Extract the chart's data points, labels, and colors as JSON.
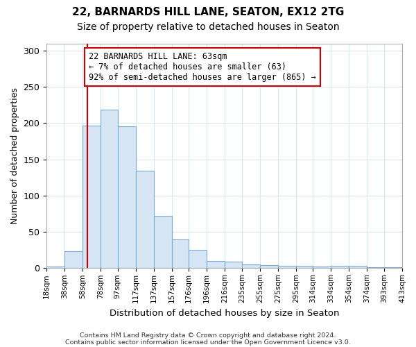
{
  "title1": "22, BARNARDS HILL LANE, SEATON, EX12 2TG",
  "title2": "Size of property relative to detached houses in Seaton",
  "xlabel": "Distribution of detached houses by size in Seaton",
  "ylabel": "Number of detached properties",
  "bin_edges": [
    18,
    38,
    58,
    78,
    97,
    117,
    137,
    157,
    176,
    196,
    216,
    235,
    255,
    275,
    295,
    314,
    334,
    354,
    374,
    393,
    413
  ],
  "bin_labels": [
    "18sqm",
    "38sqm",
    "58sqm",
    "78sqm",
    "97sqm",
    "117sqm",
    "137sqm",
    "157sqm",
    "176sqm",
    "196sqm",
    "216sqm",
    "235sqm",
    "255sqm",
    "275sqm",
    "295sqm",
    "314sqm",
    "334sqm",
    "354sqm",
    "374sqm",
    "393sqm",
    "413sqm"
  ],
  "counts": [
    2,
    23,
    197,
    219,
    196,
    134,
    72,
    40,
    25,
    10,
    9,
    5,
    4,
    3,
    3,
    2,
    3,
    3,
    1,
    1,
    1
  ],
  "bar_facecolor": "#d6e6f5",
  "bar_edgecolor": "#7aaad0",
  "grid_color": "#d8e8f0",
  "vline_color": "#cc0000",
  "vline_x": 63,
  "annotation_text": "22 BARNARDS HILL LANE: 63sqm\n← 7% of detached houses are smaller (63)\n92% of semi-detached houses are larger (865) →",
  "annotation_box_edgecolor": "#cc0000",
  "annotation_box_facecolor": "#ffffff",
  "ylim": [
    0,
    310
  ],
  "yticks": [
    0,
    50,
    100,
    150,
    200,
    250,
    300
  ],
  "footer1": "Contains HM Land Registry data © Crown copyright and database right 2024.",
  "footer2": "Contains public sector information licensed under the Open Government Licence v3.0.",
  "bg_color": "#ffffff",
  "title_fontsize": 11,
  "subtitle_fontsize": 10
}
